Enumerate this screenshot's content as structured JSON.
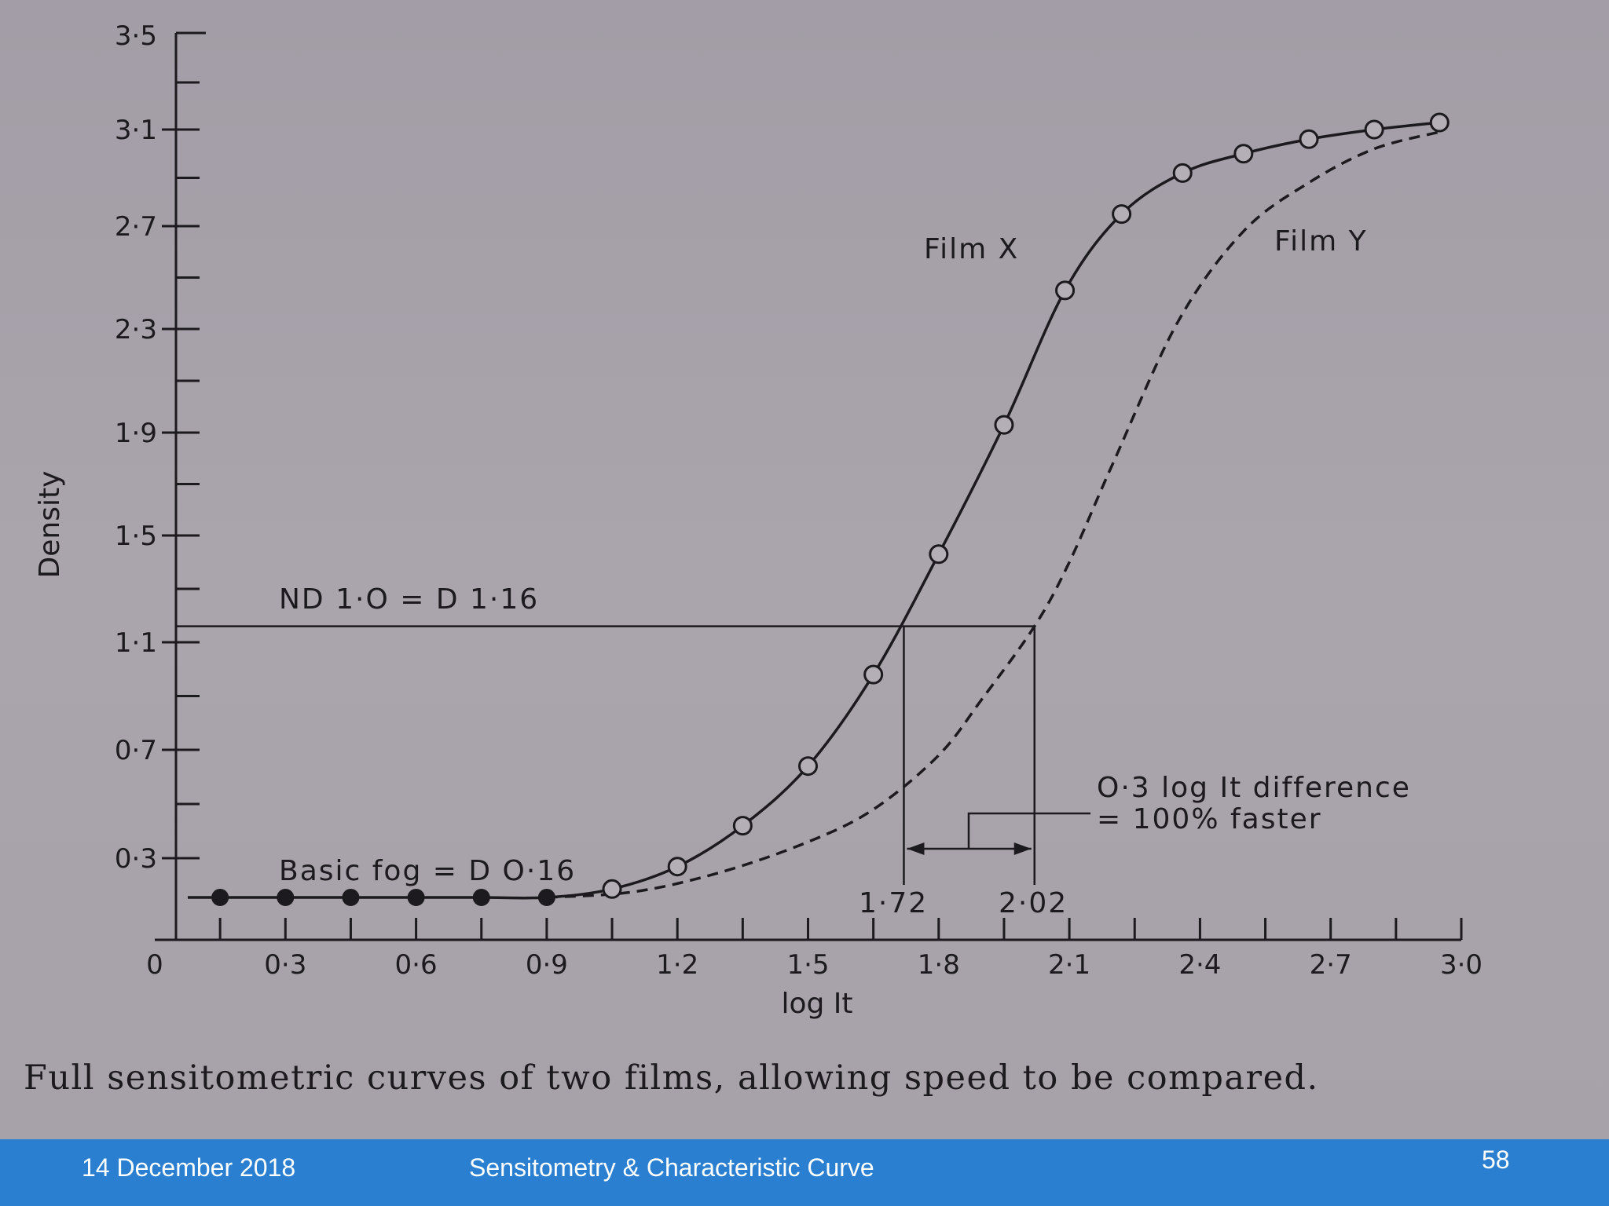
{
  "chart_data": {
    "type": "line",
    "title": "",
    "xlabel": "log It",
    "ylabel": "Density",
    "xlim": [
      0,
      3.0
    ],
    "ylim": [
      0,
      3.5
    ],
    "x_tick_labels": [
      "0",
      "0·3",
      "0·6",
      "0·9",
      "1·2",
      "1·5",
      "1·8",
      "2·1",
      "2·4",
      "2·7",
      "3·0"
    ],
    "x_tick_values": [
      0,
      0.3,
      0.6,
      0.9,
      1.2,
      1.5,
      1.8,
      2.1,
      2.4,
      2.7,
      3.0
    ],
    "y_tick_labels": [
      "0·3",
      "0·7",
      "1·1",
      "1·5",
      "1·9",
      "2·3",
      "2·7",
      "3·1",
      "3·5"
    ],
    "y_tick_values": [
      0.3,
      0.7,
      1.1,
      1.5,
      1.9,
      2.3,
      2.7,
      3.1,
      3.5
    ],
    "series": [
      {
        "name": "Film X",
        "style": "solid",
        "points": [
          [
            0.15,
            0.16
          ],
          [
            0.3,
            0.16
          ],
          [
            0.45,
            0.16
          ],
          [
            0.6,
            0.16
          ],
          [
            0.75,
            0.16
          ],
          [
            0.9,
            0.16
          ],
          [
            1.05,
            0.19
          ],
          [
            1.2,
            0.27
          ],
          [
            1.35,
            0.42
          ],
          [
            1.5,
            0.64
          ],
          [
            1.65,
            0.98
          ],
          [
            1.8,
            1.43
          ],
          [
            1.95,
            1.93
          ],
          [
            2.09,
            2.45
          ],
          [
            2.22,
            2.75
          ],
          [
            2.36,
            2.92
          ],
          [
            2.5,
            3.0
          ],
          [
            2.65,
            3.06
          ],
          [
            2.8,
            3.1
          ],
          [
            2.95,
            3.13
          ]
        ],
        "filled_marker_count": 6
      },
      {
        "name": "Film Y",
        "style": "dashed",
        "points": [
          [
            0.9,
            0.16
          ],
          [
            1.1,
            0.18
          ],
          [
            1.3,
            0.25
          ],
          [
            1.5,
            0.36
          ],
          [
            1.65,
            0.48
          ],
          [
            1.8,
            0.68
          ],
          [
            1.9,
            0.89
          ],
          [
            2.02,
            1.16
          ],
          [
            2.1,
            1.4
          ],
          [
            2.2,
            1.78
          ],
          [
            2.35,
            2.33
          ],
          [
            2.5,
            2.68
          ],
          [
            2.65,
            2.88
          ],
          [
            2.8,
            3.02
          ],
          [
            2.95,
            3.09
          ]
        ]
      }
    ],
    "reference": {
      "density": 1.16,
      "film_x_log_it": 1.72,
      "film_y_log_it": 2.02,
      "fog_density": 0.16
    },
    "annotations": {
      "film_x": "Film  X",
      "film_y": "Film  Y",
      "nd_line": "ND 1·O = D 1·16",
      "basic_fog": "Basic  fog  = D O·16",
      "marker_x": "1·72",
      "marker_y": "2·02",
      "difference_line1": "O·3  log It  difference",
      "difference_line2": "= 100%  faster"
    }
  },
  "caption": "Full sensitometric curves of two films, allowing speed to be compared.",
  "footer": {
    "date": "14 December 2018",
    "title": "Sensitometry & Characteristic Curve",
    "page": "58"
  }
}
